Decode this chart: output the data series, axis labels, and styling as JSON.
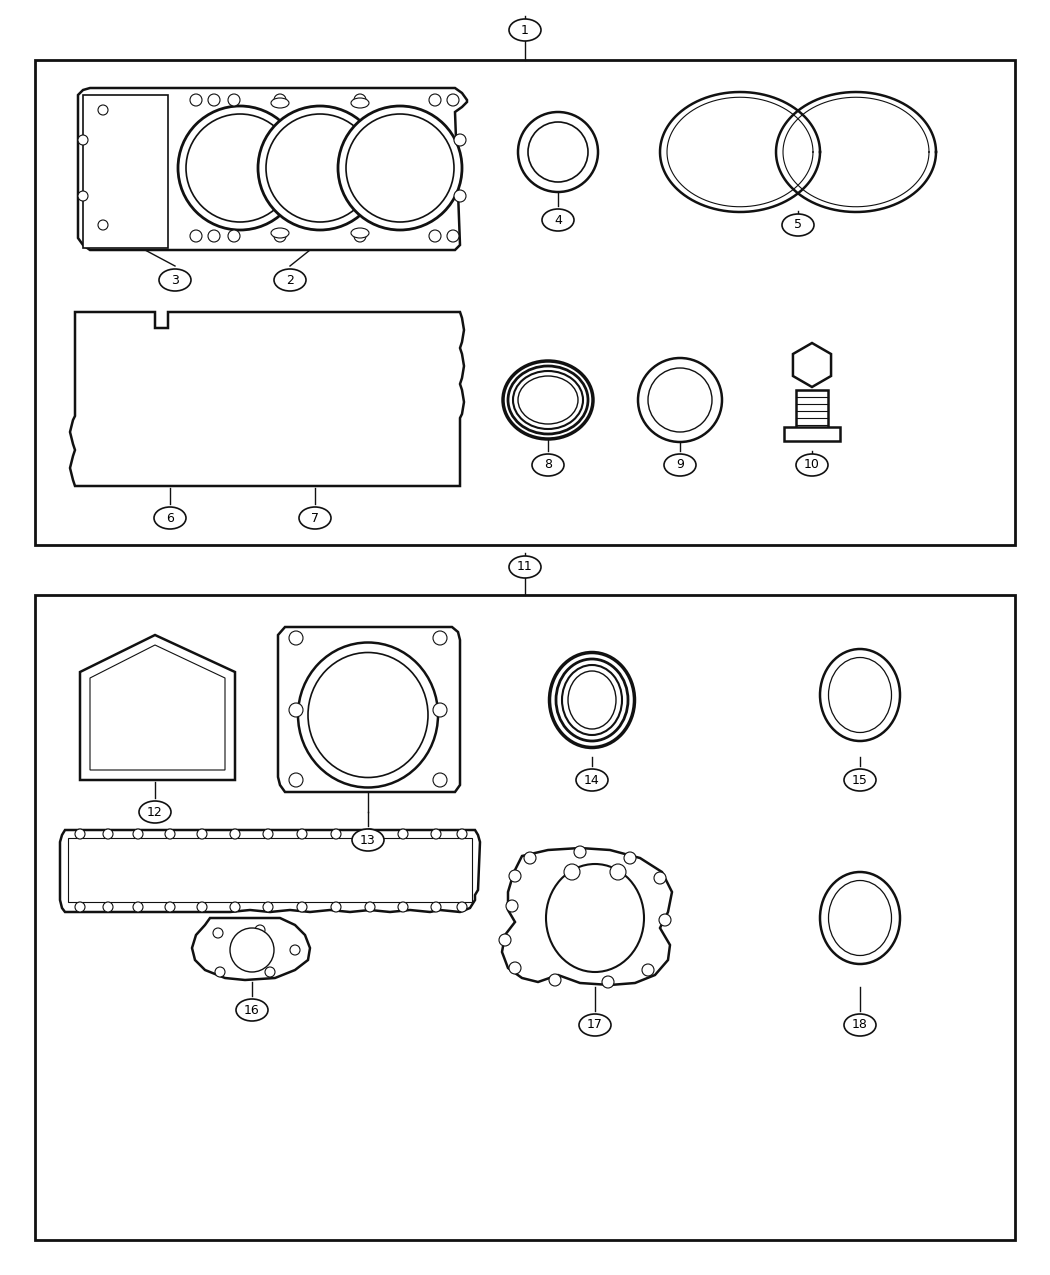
{
  "bg_color": "#ffffff",
  "line_color": "#111111",
  "lw": 1.8,
  "fig_w": 10.5,
  "fig_h": 12.75,
  "dpi": 100
}
